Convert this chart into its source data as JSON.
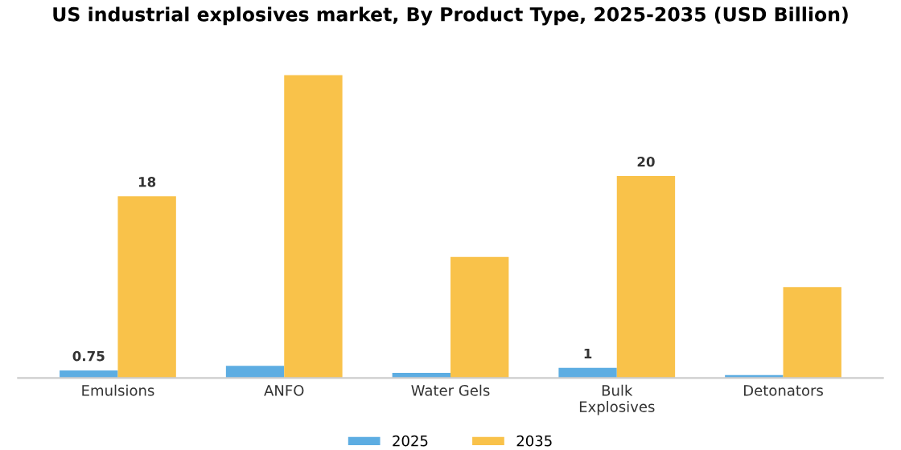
{
  "chart_data": {
    "type": "bar",
    "title": "US industrial explosives market, By Product Type, 2025-2035 (USD Billion)",
    "categories": [
      "Emulsions",
      "ANFO",
      "Water Gels",
      "Bulk\nExplosives",
      "Detonators"
    ],
    "series": [
      {
        "name": "2025",
        "color": "#5dade2",
        "values": [
          0.75,
          1.2,
          0.5,
          1,
          0.3
        ],
        "value_labels": [
          "0.75",
          null,
          null,
          "1",
          null
        ]
      },
      {
        "name": "2035",
        "color": "#f9c24a",
        "values": [
          18,
          30,
          12,
          20,
          9
        ],
        "value_labels": [
          "18",
          null,
          null,
          "20",
          null
        ]
      }
    ],
    "legend": "bottom",
    "grid": false
  }
}
